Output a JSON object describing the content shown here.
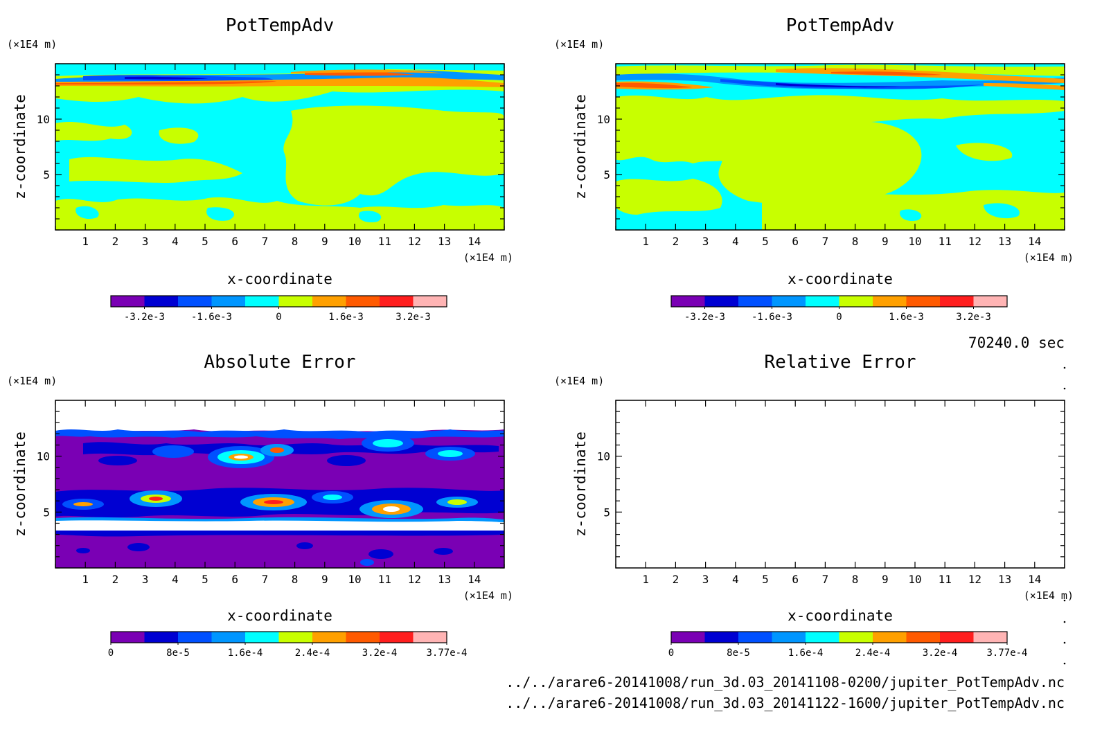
{
  "chart_data": [
    {
      "type": "heatmap",
      "title": "PotTempAdv",
      "xlabel": "x-coordinate",
      "ylabel": "z-coordinate",
      "xunit": "(×1E4 m)",
      "yunit": "(×1E4 m)",
      "xlim": [
        0,
        15
      ],
      "ylim": [
        0,
        15
      ],
      "xticks": [
        "1",
        "2",
        "3",
        "4",
        "5",
        "6",
        "7",
        "8",
        "9",
        "10",
        "11",
        "12",
        "13",
        "14"
      ],
      "yticks": [
        "5",
        "10"
      ],
      "colorbar_labels": [
        "-3.2e-3",
        "-1.6e-3",
        "0",
        "1.6e-3",
        "3.2e-3"
      ]
    },
    {
      "type": "heatmap",
      "title": "PotTempAdv",
      "xlabel": "x-coordinate",
      "ylabel": "z-coordinate",
      "xunit": "(×1E4 m)",
      "yunit": "(×1E4 m)",
      "xlim": [
        0,
        15
      ],
      "ylim": [
        0,
        15
      ],
      "xticks": [
        "1",
        "2",
        "3",
        "4",
        "5",
        "6",
        "7",
        "8",
        "9",
        "10",
        "11",
        "12",
        "13",
        "14"
      ],
      "yticks": [
        "5",
        "10"
      ],
      "colorbar_labels": [
        "-3.2e-3",
        "-1.6e-3",
        "0",
        "1.6e-3",
        "3.2e-3"
      ]
    },
    {
      "type": "heatmap",
      "title": "Absolute Error",
      "xlabel": "x-coordinate",
      "ylabel": "z-coordinate",
      "xunit": "(×1E4 m)",
      "yunit": "(×1E4 m)",
      "xlim": [
        0,
        15
      ],
      "ylim": [
        0,
        15
      ],
      "xticks": [
        "1",
        "2",
        "3",
        "4",
        "5",
        "6",
        "7",
        "8",
        "9",
        "10",
        "11",
        "12",
        "13",
        "14"
      ],
      "yticks": [
        "5",
        "10"
      ],
      "colorbar_labels": [
        "0",
        "8e-5",
        "1.6e-4",
        "2.4e-4",
        "3.2e-4",
        "3.77e-4"
      ]
    },
    {
      "type": "heatmap",
      "title": "Relative Error",
      "xlabel": "x-coordinate",
      "ylabel": "z-coordinate",
      "xunit": "(×1E4 m)",
      "yunit": "(×1E4 m)",
      "xlim": [
        0,
        15
      ],
      "ylim": [
        0,
        15
      ],
      "xticks": [
        "1",
        "2",
        "3",
        "4",
        "5",
        "6",
        "7",
        "8",
        "9",
        "10",
        "11",
        "12",
        "13",
        "14"
      ],
      "yticks": [
        "5",
        "10"
      ],
      "colorbar_labels": [
        "0",
        "8e-5",
        "1.6e-4",
        "2.4e-4",
        "3.2e-4",
        "3.77e-4"
      ]
    }
  ],
  "palette": [
    "#7a00b4",
    "#0000d2",
    "#0050ff",
    "#0096ff",
    "#00ffff",
    "#c8ff00",
    "#ffa000",
    "#ff5a00",
    "#ff1e1e",
    "#ffb4b4"
  ],
  "footer": {
    "time": "70240.0 sec",
    "file1": "../../arare6-20141008/run_3d.03_20141108-0200/jupiter_PotTempAdv.nc",
    "file2": "../../arare6-20141008/run_3d.03_20141122-1600/jupiter_PotTempAdv.nc"
  }
}
